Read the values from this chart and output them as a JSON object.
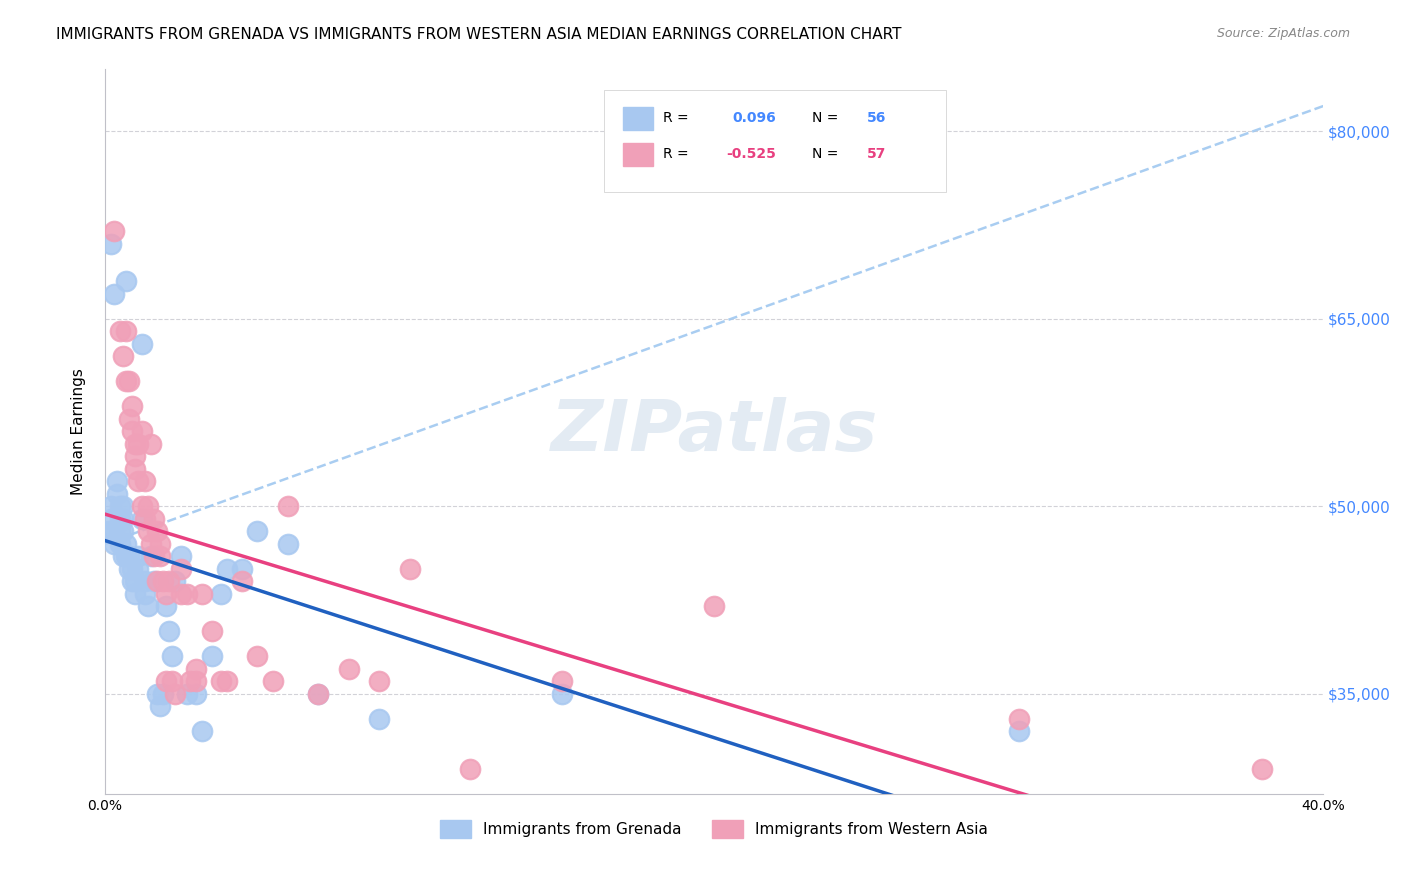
{
  "title": "IMMIGRANTS FROM GRENADA VS IMMIGRANTS FROM WESTERN ASIA MEDIAN EARNINGS CORRELATION CHART",
  "source": "Source: ZipAtlas.com",
  "xlabel": "",
  "ylabel": "Median Earnings",
  "xmin": 0.0,
  "xmax": 0.4,
  "ymin": 27000,
  "ymax": 85000,
  "yticks": [
    35000,
    50000,
    65000,
    80000
  ],
  "ytick_labels": [
    "$35,000",
    "$50,000",
    "$65,000",
    "$80,000"
  ],
  "xticks": [
    0.0,
    0.05,
    0.1,
    0.15,
    0.2,
    0.25,
    0.3,
    0.35,
    0.4
  ],
  "xtick_labels": [
    "0.0%",
    "",
    "",
    "",
    "",
    "",
    "",
    "",
    "40.0%"
  ],
  "legend_r_blue": "R =  0.096",
  "legend_n_blue": "N = 56",
  "legend_r_pink": "R = -0.525",
  "legend_n_pink": "N = 57",
  "legend_label_blue": "Immigrants from Grenada",
  "legend_label_pink": "Immigrants from Western Asia",
  "blue_color": "#a8c8f0",
  "pink_color": "#f0a0b8",
  "blue_line_color": "#2060c0",
  "pink_line_color": "#e84080",
  "dashed_line_color": "#a0c8f0",
  "R_blue": 0.096,
  "R_pink": -0.525,
  "blue_scatter_x": [
    0.002,
    0.003,
    0.007,
    0.012,
    0.001,
    0.002,
    0.002,
    0.003,
    0.003,
    0.004,
    0.004,
    0.005,
    0.005,
    0.005,
    0.005,
    0.006,
    0.006,
    0.006,
    0.006,
    0.007,
    0.007,
    0.008,
    0.008,
    0.009,
    0.009,
    0.01,
    0.01,
    0.011,
    0.011,
    0.012,
    0.013,
    0.013,
    0.014,
    0.015,
    0.016,
    0.017,
    0.018,
    0.019,
    0.02,
    0.021,
    0.022,
    0.023,
    0.025,
    0.027,
    0.03,
    0.032,
    0.035,
    0.038,
    0.04,
    0.045,
    0.05,
    0.06,
    0.07,
    0.09,
    0.15,
    0.3
  ],
  "blue_scatter_y": [
    71000,
    67000,
    68000,
    63000,
    48000,
    50000,
    49000,
    47000,
    48000,
    52000,
    51000,
    50000,
    49000,
    48000,
    47000,
    46000,
    48000,
    49000,
    50000,
    47000,
    46000,
    45000,
    46000,
    44000,
    45000,
    44000,
    43000,
    46000,
    45000,
    49000,
    44000,
    43000,
    42000,
    46000,
    44000,
    35000,
    34000,
    35000,
    42000,
    40000,
    38000,
    44000,
    46000,
    35000,
    35000,
    32000,
    38000,
    43000,
    45000,
    45000,
    48000,
    47000,
    35000,
    33000,
    35000,
    32000
  ],
  "pink_scatter_x": [
    0.003,
    0.005,
    0.006,
    0.007,
    0.007,
    0.008,
    0.008,
    0.009,
    0.009,
    0.01,
    0.01,
    0.01,
    0.011,
    0.011,
    0.012,
    0.012,
    0.013,
    0.013,
    0.014,
    0.014,
    0.015,
    0.015,
    0.016,
    0.016,
    0.017,
    0.017,
    0.018,
    0.018,
    0.019,
    0.02,
    0.02,
    0.021,
    0.022,
    0.023,
    0.025,
    0.025,
    0.027,
    0.028,
    0.03,
    0.03,
    0.032,
    0.035,
    0.038,
    0.04,
    0.045,
    0.05,
    0.055,
    0.06,
    0.07,
    0.08,
    0.09,
    0.1,
    0.12,
    0.15,
    0.2,
    0.3,
    0.38
  ],
  "pink_scatter_y": [
    72000,
    64000,
    62000,
    64000,
    60000,
    60000,
    57000,
    58000,
    56000,
    55000,
    53000,
    54000,
    55000,
    52000,
    56000,
    50000,
    52000,
    49000,
    50000,
    48000,
    55000,
    47000,
    49000,
    46000,
    48000,
    44000,
    47000,
    46000,
    44000,
    43000,
    36000,
    44000,
    36000,
    35000,
    43000,
    45000,
    43000,
    36000,
    37000,
    36000,
    43000,
    40000,
    36000,
    36000,
    44000,
    38000,
    36000,
    50000,
    35000,
    37000,
    36000,
    45000,
    29000,
    36000,
    42000,
    33000,
    29000
  ],
  "background_color": "#ffffff",
  "watermark_text": "ZIPatlas",
  "title_fontsize": 11,
  "axis_label_fontsize": 11,
  "tick_fontsize": 10
}
